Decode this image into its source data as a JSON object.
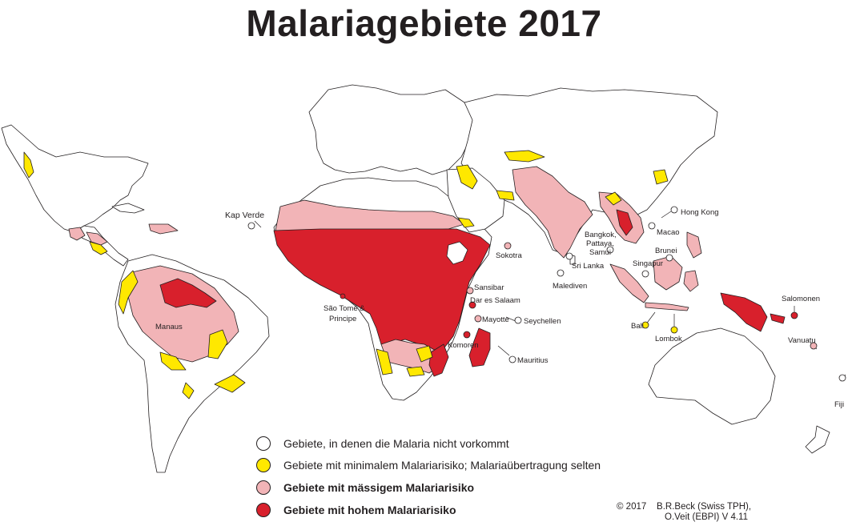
{
  "title": "Malariagebiete 2017",
  "colors": {
    "none": "#ffffff",
    "minimal": "#ffe800",
    "moderate": "#f2b4b7",
    "high": "#d8202c",
    "outline": "#231f20"
  },
  "labels": {
    "kap_verde": "Kap Verde",
    "manaus": "Manaus",
    "sao_tome": "São Tomé &",
    "principe": "Principe",
    "sokotra": "Sokotra",
    "sansibar": "Sansibar",
    "dar_es_salaam": "Dar es Salaam",
    "mayotte": "Mayotte",
    "seychellen": "Seychellen",
    "komoren": "Komoren",
    "mauritius": "Mauritius",
    "malediven": "Malediven",
    "sri_lanka": "Sri Lanka",
    "bangkok": "Bangkok,",
    "pattaya": "Pattaya,",
    "samui": "Samui",
    "hong_kong": "Hong Kong",
    "macao": "Macao",
    "brunei": "Brunei",
    "singapur": "Singapur",
    "bali": "Bali",
    "lombok": "Lombok",
    "salomonen": "Salomonen",
    "vanuatu": "Vanuatu",
    "fiji": "Fiji"
  },
  "legend": {
    "none": "Gebiete, in denen die Malaria nicht vorkommt",
    "minimal": "Gebiete mit minimalem Malariarisiko; Malariaübertragung selten",
    "moderate": "Gebiete mit mässigem Malariarisiko",
    "high": "Gebiete mit hohem Malariarisiko"
  },
  "credit": {
    "line1": "© 2017    B.R.Beck (Swiss TPH),",
    "line2": "O.Veit (EBPI) V 4.11"
  }
}
